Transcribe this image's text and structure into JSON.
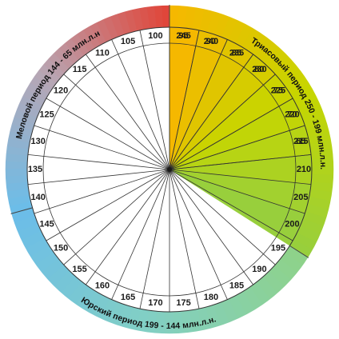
{
  "periods": [
    {
      "key": "triassic",
      "label": "Триасовый период 250 - 199 млн.л.н.",
      "ticks": [
        245,
        240,
        235,
        230,
        225,
        220,
        215,
        210,
        205,
        200
      ],
      "colors": [
        "#f5b800",
        "#c6d600",
        "#98cf3c"
      ]
    },
    {
      "key": "jurassic",
      "label": "Юрский период 199 - 144 млн.л.н.",
      "ticks": [
        195,
        190,
        185,
        180,
        175,
        170,
        165,
        160,
        155,
        150,
        145
      ],
      "colors": [
        "#8ed28a",
        "#82cfc4",
        "#6cbde8"
      ]
    },
    {
      "key": "cretaceous",
      "label": "Меловой период 144 - 65 млн.л.н",
      "ticks": [
        140,
        135,
        130,
        125,
        120,
        115,
        110,
        105,
        100,
        95,
        90,
        85,
        80,
        75,
        70,
        65
      ],
      "colors": [
        "#6cbde8",
        "#b8a6b4",
        "#e0463a"
      ]
    }
  ],
  "center_color": "#1a1a1a"
}
